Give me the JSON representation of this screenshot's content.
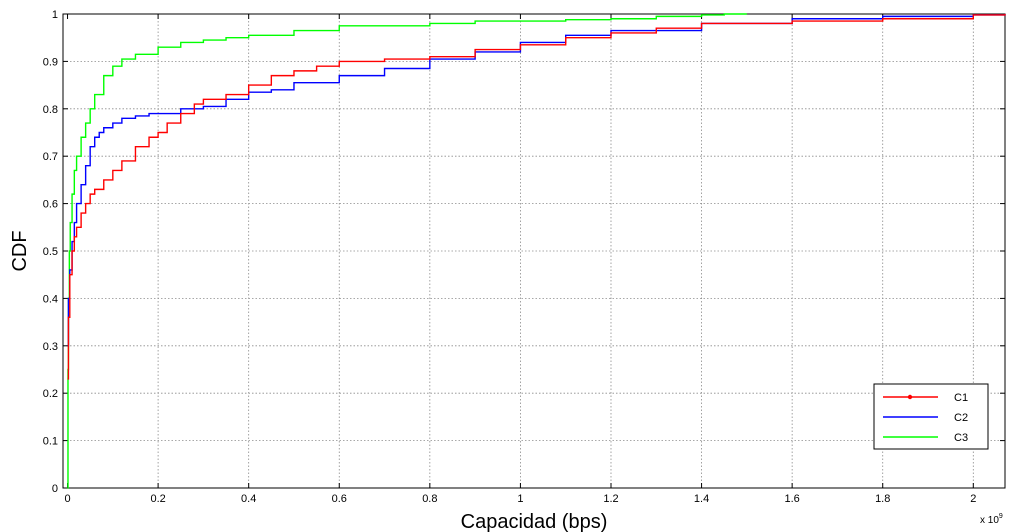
{
  "chart_data": {
    "type": "line",
    "title": "",
    "xlabel": "Capacidad (bps)",
    "ylabel": "CDF",
    "x_multiplier": "x 10",
    "x_multiplier_exp": "9",
    "xlim": [
      -0.01,
      2.07
    ],
    "ylim": [
      0,
      1
    ],
    "x_ticks": [
      0,
      0.2,
      0.4,
      0.6,
      0.8,
      1,
      1.2,
      1.4,
      1.6,
      1.8,
      2
    ],
    "x_tick_labels": [
      "0",
      "0.2",
      "0.4",
      "0.6",
      "0.8",
      "1",
      "1.2",
      "1.4",
      "1.6",
      "1.8",
      "2"
    ],
    "y_ticks": [
      0,
      0.1,
      0.2,
      0.3,
      0.4,
      0.5,
      0.6,
      0.7,
      0.8,
      0.9,
      1
    ],
    "y_tick_labels": [
      "0",
      "0.1",
      "0.2",
      "0.3",
      "0.4",
      "0.5",
      "0.6",
      "0.7",
      "0.8",
      "0.9",
      "1"
    ],
    "grid": true,
    "legend_position": "bottom-right",
    "series": [
      {
        "name": "C1",
        "color": "#ff0000",
        "marker": "dot",
        "x": [
          0,
          0.002,
          0.005,
          0.01,
          0.015,
          0.02,
          0.03,
          0.04,
          0.05,
          0.06,
          0.08,
          0.1,
          0.12,
          0.15,
          0.18,
          0.2,
          0.22,
          0.25,
          0.28,
          0.3,
          0.35,
          0.4,
          0.45,
          0.5,
          0.55,
          0.6,
          0.7,
          0.8,
          0.9,
          1.0,
          1.1,
          1.2,
          1.3,
          1.4,
          1.6,
          1.8,
          2.0,
          2.07
        ],
        "y": [
          0.23,
          0.36,
          0.45,
          0.5,
          0.53,
          0.55,
          0.58,
          0.6,
          0.62,
          0.63,
          0.65,
          0.67,
          0.69,
          0.72,
          0.74,
          0.75,
          0.77,
          0.79,
          0.81,
          0.82,
          0.83,
          0.85,
          0.87,
          0.88,
          0.89,
          0.9,
          0.905,
          0.91,
          0.925,
          0.935,
          0.95,
          0.96,
          0.97,
          0.98,
          0.985,
          0.99,
          0.998,
          1.0
        ]
      },
      {
        "name": "C2",
        "color": "#0000ff",
        "x": [
          0,
          0.002,
          0.005,
          0.01,
          0.015,
          0.02,
          0.03,
          0.04,
          0.05,
          0.06,
          0.07,
          0.08,
          0.1,
          0.12,
          0.15,
          0.18,
          0.2,
          0.25,
          0.3,
          0.35,
          0.4,
          0.45,
          0.5,
          0.6,
          0.7,
          0.8,
          0.9,
          1.0,
          1.1,
          1.2,
          1.4,
          1.6,
          1.8,
          2.0,
          2.07
        ],
        "y": [
          0.3,
          0.4,
          0.46,
          0.52,
          0.56,
          0.6,
          0.64,
          0.68,
          0.72,
          0.74,
          0.75,
          0.76,
          0.77,
          0.78,
          0.785,
          0.79,
          0.79,
          0.8,
          0.805,
          0.82,
          0.835,
          0.84,
          0.855,
          0.87,
          0.885,
          0.905,
          0.92,
          0.94,
          0.955,
          0.965,
          0.98,
          0.99,
          0.995,
          0.998,
          1.0
        ]
      },
      {
        "name": "C3",
        "color": "#00ff00",
        "x": [
          0,
          0.001,
          0.002,
          0.004,
          0.006,
          0.01,
          0.015,
          0.02,
          0.03,
          0.04,
          0.05,
          0.06,
          0.08,
          0.1,
          0.12,
          0.15,
          0.2,
          0.25,
          0.3,
          0.35,
          0.4,
          0.5,
          0.6,
          0.7,
          0.8,
          0.9,
          1.0,
          1.1,
          1.2,
          1.3,
          1.4,
          1.45,
          1.5
        ],
        "y": [
          0.0,
          0.25,
          0.4,
          0.5,
          0.56,
          0.62,
          0.67,
          0.7,
          0.74,
          0.77,
          0.8,
          0.83,
          0.87,
          0.89,
          0.905,
          0.915,
          0.93,
          0.94,
          0.945,
          0.95,
          0.955,
          0.965,
          0.975,
          0.975,
          0.98,
          0.985,
          0.985,
          0.988,
          0.99,
          0.995,
          0.998,
          1.0,
          1.0
        ]
      }
    ]
  }
}
